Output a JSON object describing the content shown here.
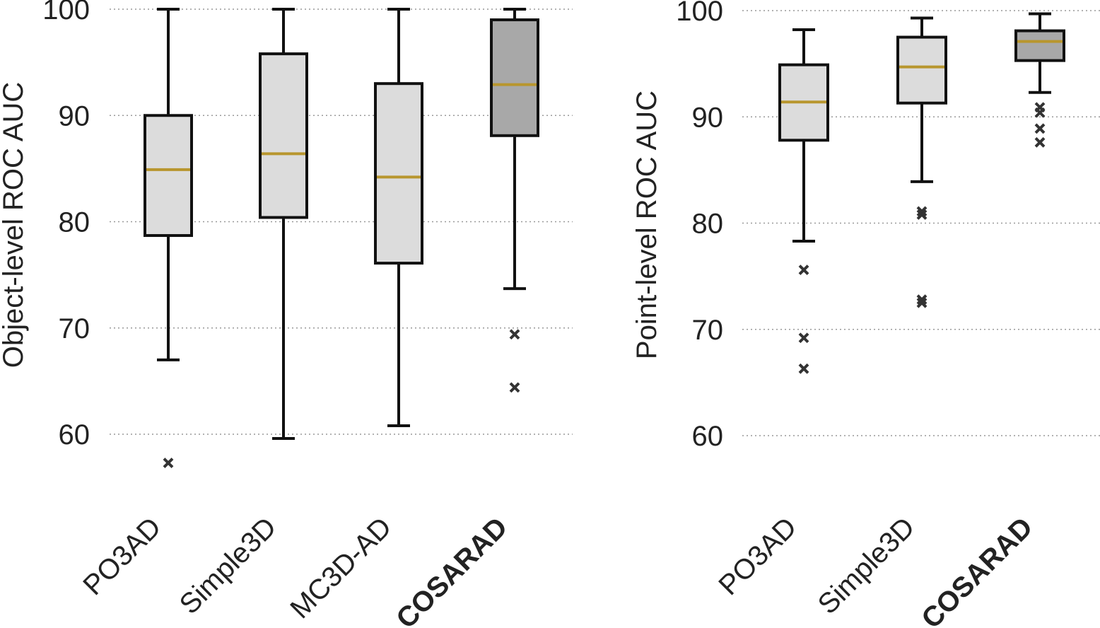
{
  "colors": {
    "box_fill": "#dcdcdc",
    "box_fill_highlight": "#a8a8a8",
    "median": "#b8962e",
    "outline": "#111111",
    "flier": "#333333",
    "grid": "#999999"
  },
  "chart_data": [
    {
      "type": "boxplot",
      "ylabel": "Object-level ROC AUC",
      "ylim": [
        50,
        100
      ],
      "yticks": [
        60,
        70,
        80,
        90,
        100
      ],
      "grid": "y-dotted",
      "categories": [
        "PO3AD",
        "Simple3D",
        "MC3D-AD",
        "COSARAD"
      ],
      "bold_category": "COSARAD",
      "boxes": [
        {
          "name": "PO3AD",
          "whislo": 67.0,
          "q1": 78.7,
          "med": 84.9,
          "q3": 90.0,
          "whishi": 100.0,
          "fliers": [
            57.3
          ],
          "highlight": false
        },
        {
          "name": "Simple3D",
          "whislo": 59.6,
          "q1": 80.4,
          "med": 86.4,
          "q3": 95.8,
          "whishi": 100.0,
          "fliers": [],
          "highlight": false
        },
        {
          "name": "MC3D-AD",
          "whislo": 60.8,
          "q1": 76.1,
          "med": 84.2,
          "q3": 93.0,
          "whishi": 100.0,
          "fliers": [],
          "highlight": false
        },
        {
          "name": "COSARAD",
          "whislo": 73.7,
          "q1": 88.1,
          "med": 92.9,
          "q3": 99.0,
          "whishi": 100.0,
          "fliers": [
            69.4,
            64.4
          ],
          "highlight": true
        }
      ]
    },
    {
      "type": "boxplot",
      "ylabel": "Point-level ROC AUC",
      "ylim": [
        50,
        100
      ],
      "yticks": [
        60,
        70,
        80,
        90,
        100
      ],
      "grid": "y-dotted",
      "categories": [
        "PO3AD",
        "Simple3D",
        "COSARAD"
      ],
      "bold_category": "COSARAD",
      "boxes": [
        {
          "name": "PO3AD",
          "whislo": 78.3,
          "q1": 87.8,
          "med": 91.4,
          "q3": 94.9,
          "whishi": 98.2,
          "fliers": [
            75.6,
            69.2,
            66.3
          ],
          "highlight": false
        },
        {
          "name": "Simple3D",
          "whislo": 83.9,
          "q1": 91.3,
          "med": 94.7,
          "q3": 97.5,
          "whishi": 99.3,
          "fliers": [
            81.1,
            80.8,
            72.8,
            72.5
          ],
          "highlight": false
        },
        {
          "name": "COSARAD",
          "whislo": 92.3,
          "q1": 95.3,
          "med": 97.1,
          "q3": 98.1,
          "whishi": 99.7,
          "fliers": [
            90.9,
            90.4,
            88.9,
            87.6
          ],
          "highlight": true
        }
      ]
    }
  ]
}
